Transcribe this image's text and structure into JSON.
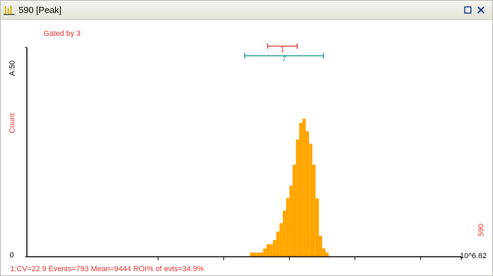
{
  "window": {
    "title": "590 [Peak]"
  },
  "chart_data": {
    "type": "histogram",
    "subtitle": "Gated by 3",
    "y_label": "Count",
    "x_label": "590",
    "footer": "1:CV=22.9  Events=793  Mean=9444  ROI% of evts=34.9%",
    "color": "#ffa500",
    "bins": [
      3.0,
      3.05,
      3.1,
      3.15,
      3.2,
      3.25,
      3.3,
      3.35,
      3.4,
      3.45,
      3.5,
      3.55,
      3.6,
      3.65,
      3.7,
      3.75,
      3.8,
      3.85,
      3.9,
      3.95,
      4.0,
      4.05,
      4.1,
      4.15,
      4.2,
      4.25,
      4.3,
      4.35,
      4.4,
      4.45,
      4.5,
      4.55,
      4.6,
      4.65,
      4.7
    ],
    "values": [
      0,
      0,
      0,
      0,
      0,
      0,
      0,
      0,
      1,
      1,
      1,
      1,
      2,
      3,
      3,
      4,
      6,
      8,
      11,
      14,
      17,
      22,
      28,
      32,
      33,
      30,
      27,
      22,
      14,
      5,
      2,
      1,
      0,
      0
    ],
    "xlim": [
      0,
      6.62
    ],
    "xticks": [
      {
        "value": 6.62,
        "label": "10^6.62"
      }
    ],
    "xminorticks": [
      2,
      3,
      4,
      5,
      6
    ],
    "ylim": [
      0,
      50
    ],
    "yticks": [
      0,
      {
        "value": 50,
        "label": "A:50"
      }
    ],
    "gates": [
      {
        "label": "1",
        "color": "#e04848",
        "range": [
          3.67,
          4.12
        ]
      },
      {
        "label": "7",
        "color": "#2a9a9a",
        "range": [
          3.32,
          4.52
        ]
      }
    ]
  }
}
